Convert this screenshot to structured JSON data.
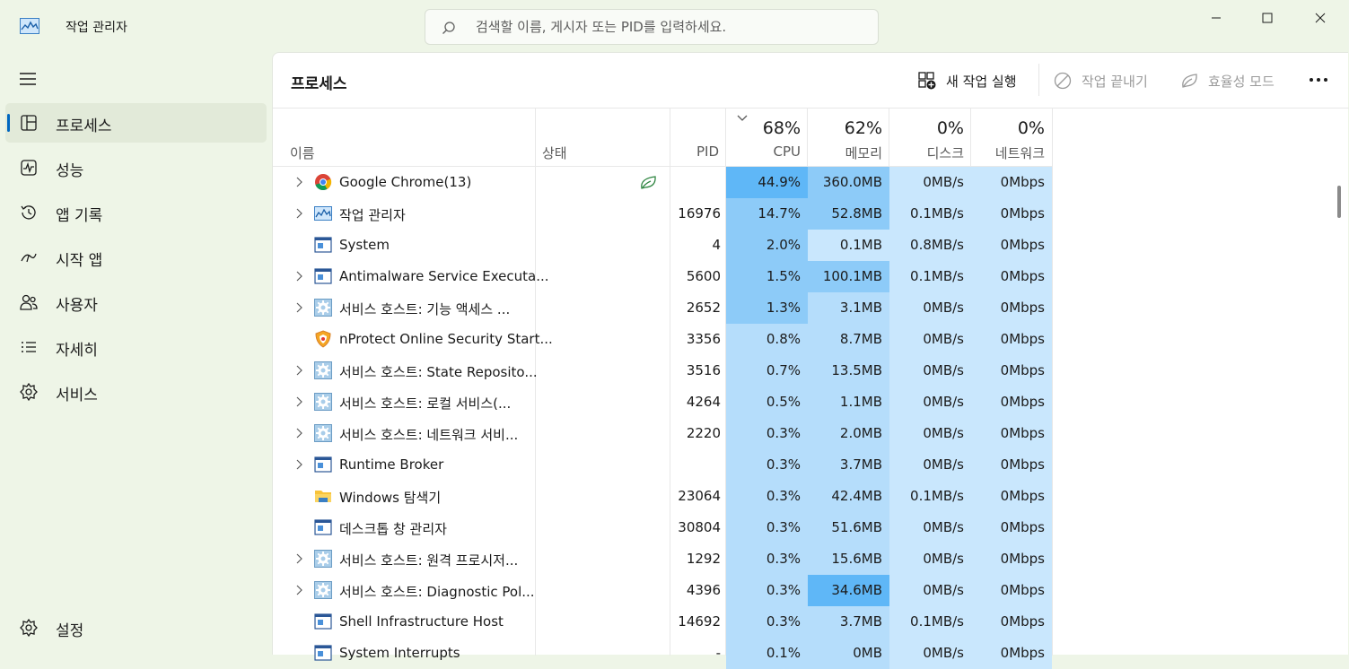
{
  "app": {
    "title": "작업 관리자"
  },
  "search": {
    "placeholder": "검색할 이름, 게시자 또는 PID를 입력하세요."
  },
  "sidebar": {
    "items": [
      {
        "label": "프로세스",
        "icon": "processes-icon",
        "active": true
      },
      {
        "label": "성능",
        "icon": "performance-icon"
      },
      {
        "label": "앱 기록",
        "icon": "app-history-icon"
      },
      {
        "label": "시작 앱",
        "icon": "startup-apps-icon"
      },
      {
        "label": "사용자",
        "icon": "users-icon"
      },
      {
        "label": "자세히",
        "icon": "details-icon"
      },
      {
        "label": "서비스",
        "icon": "services-icon"
      }
    ],
    "settings_label": "설정"
  },
  "main": {
    "title": "프로세스",
    "commands": {
      "run_new_task": "새 작업 실행",
      "end_task": "작업 끝내기",
      "efficiency_mode": "효율성 모드"
    }
  },
  "columns": {
    "name": "이름",
    "status": "상태",
    "pid": "PID",
    "cpu": {
      "label": "CPU",
      "percent": "68%"
    },
    "memory": {
      "label": "메모리",
      "percent": "62%"
    },
    "disk": {
      "label": "디스크",
      "percent": "0%"
    },
    "network": {
      "label": "네트워크",
      "percent": "0%"
    }
  },
  "processes": [
    {
      "name": "Google Chrome(13)",
      "icon": "chrome-icon",
      "expandable": true,
      "efficiency": true,
      "pid": "",
      "cpu": "44.9%",
      "mem": "360.0MB",
      "disk": "0MB/s",
      "net": "0Mbps",
      "cpu_heat": 4,
      "mem_heat": 3
    },
    {
      "name": "작업 관리자",
      "icon": "task-manager-icon",
      "expandable": true,
      "pid": "16976",
      "cpu": "14.7%",
      "mem": "52.8MB",
      "disk": "0.1MB/s",
      "net": "0Mbps",
      "cpu_heat": 3,
      "mem_heat": 3
    },
    {
      "name": "System",
      "icon": "system-window-icon",
      "expandable": false,
      "pid": "4",
      "cpu": "2.0%",
      "mem": "0.1MB",
      "disk": "0.8MB/s",
      "net": "0Mbps",
      "cpu_heat": 3,
      "mem_heat": 1
    },
    {
      "name": "Antimalware Service Executa...",
      "icon": "system-window-icon",
      "expandable": true,
      "pid": "5600",
      "cpu": "1.5%",
      "mem": "100.1MB",
      "disk": "0.1MB/s",
      "net": "0Mbps",
      "cpu_heat": 3,
      "mem_heat": 3
    },
    {
      "name": "서비스 호스트: 기능 액세스 ...",
      "icon": "gear-service-icon",
      "expandable": true,
      "pid": "2652",
      "cpu": "1.3%",
      "mem": "3.1MB",
      "disk": "0MB/s",
      "net": "0Mbps",
      "cpu_heat": 3,
      "mem_heat": 2
    },
    {
      "name": "nProtect Online Security Start...",
      "icon": "nprotect-shield-icon",
      "expandable": false,
      "pid": "3356",
      "cpu": "0.8%",
      "mem": "8.7MB",
      "disk": "0MB/s",
      "net": "0Mbps",
      "cpu_heat": 2,
      "mem_heat": 2
    },
    {
      "name": "서비스 호스트: State Reposito...",
      "icon": "gear-service-icon",
      "expandable": true,
      "pid": "3516",
      "cpu": "0.7%",
      "mem": "13.5MB",
      "disk": "0MB/s",
      "net": "0Mbps",
      "cpu_heat": 2,
      "mem_heat": 2
    },
    {
      "name": "서비스 호스트: 로컬 서비스(...",
      "icon": "gear-service-icon",
      "expandable": true,
      "pid": "4264",
      "cpu": "0.5%",
      "mem": "1.1MB",
      "disk": "0MB/s",
      "net": "0Mbps",
      "cpu_heat": 2,
      "mem_heat": 2
    },
    {
      "name": "서비스 호스트: 네트워크 서비...",
      "icon": "gear-service-icon",
      "expandable": true,
      "pid": "2220",
      "cpu": "0.3%",
      "mem": "2.0MB",
      "disk": "0MB/s",
      "net": "0Mbps",
      "cpu_heat": 2,
      "mem_heat": 2
    },
    {
      "name": "Runtime Broker",
      "icon": "system-window-icon",
      "expandable": true,
      "pid": "",
      "cpu": "0.3%",
      "mem": "3.7MB",
      "disk": "0MB/s",
      "net": "0Mbps",
      "cpu_heat": 2,
      "mem_heat": 2
    },
    {
      "name": "Windows 탐색기",
      "icon": "folder-icon",
      "expandable": false,
      "pid": "23064",
      "cpu": "0.3%",
      "mem": "42.4MB",
      "disk": "0.1MB/s",
      "net": "0Mbps",
      "cpu_heat": 2,
      "mem_heat": 2
    },
    {
      "name": "데스크톱 창 관리자",
      "icon": "system-window-icon",
      "expandable": false,
      "pid": "30804",
      "cpu": "0.3%",
      "mem": "51.6MB",
      "disk": "0MB/s",
      "net": "0Mbps",
      "cpu_heat": 2,
      "mem_heat": 2
    },
    {
      "name": "서비스 호스트: 원격 프로시저...",
      "icon": "gear-service-icon",
      "expandable": true,
      "pid": "1292",
      "cpu": "0.3%",
      "mem": "15.6MB",
      "disk": "0MB/s",
      "net": "0Mbps",
      "cpu_heat": 2,
      "mem_heat": 2
    },
    {
      "name": "서비스 호스트: Diagnostic Pol...",
      "icon": "gear-service-icon",
      "expandable": true,
      "pid": "4396",
      "cpu": "0.3%",
      "mem": "34.6MB",
      "disk": "0MB/s",
      "net": "0Mbps",
      "cpu_heat": 2,
      "mem_heat": 4
    },
    {
      "name": "Shell Infrastructure Host",
      "icon": "system-window-icon",
      "expandable": false,
      "pid": "14692",
      "cpu": "0.3%",
      "mem": "3.7MB",
      "disk": "0.1MB/s",
      "net": "0Mbps",
      "cpu_heat": 2,
      "mem_heat": 2
    },
    {
      "name": "System Interrupts",
      "icon": "system-window-icon",
      "expandable": false,
      "pid": "-",
      "cpu": "0.1%",
      "mem": "0MB",
      "disk": "0MB/s",
      "net": "0Mbps",
      "cpu_heat": 2,
      "mem_heat": 2
    }
  ]
}
